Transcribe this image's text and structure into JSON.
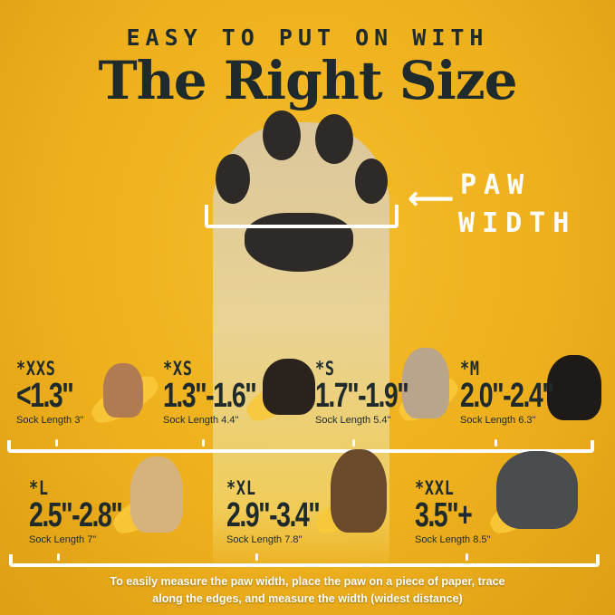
{
  "header": {
    "subtitle": "EASY TO PUT ON WITH",
    "title": "The Right Size"
  },
  "paw_label": {
    "line1": "PAW",
    "line2": "WIDTH"
  },
  "sizes_row1": [
    {
      "size": "*XXS",
      "range": "<1.3\"",
      "sock": "Sock Length 3\"",
      "dog_color": "#b07a52"
    },
    {
      "size": "*XS",
      "range": "1.3\"-1.6\"",
      "sock": "Sock Length 4.4\"",
      "dog_color": "#2a221c"
    },
    {
      "size": "*S",
      "range": "1.7\"-1.9\"",
      "sock": "Sock Length 5.4\"",
      "dog_color": "#b9a48c"
    },
    {
      "size": "*M",
      "range": "2.0\"-2.4\"",
      "sock": "Sock Length 6.3\"",
      "dog_color": "#1d1a18"
    }
  ],
  "sizes_row2": [
    {
      "size": "*L",
      "range": "2.5\"-2.8\"",
      "sock": "Sock Length 7\"",
      "dog_color": "#d6b27c"
    },
    {
      "size": "*XL",
      "range": "2.9\"-3.4\"",
      "sock": "Sock Length 7.8\"",
      "dog_color": "#6a4a2a"
    },
    {
      "size": "*XXL",
      "range": "3.5\"+",
      "sock": "Sock Length 8.5\"",
      "dog_color": "#4a4c50"
    }
  ],
  "footer": {
    "line1": "To easily measure the paw width, place the paw on a piece of paper, trace",
    "line2": "along the edges, and measure the width (widest distance)"
  }
}
